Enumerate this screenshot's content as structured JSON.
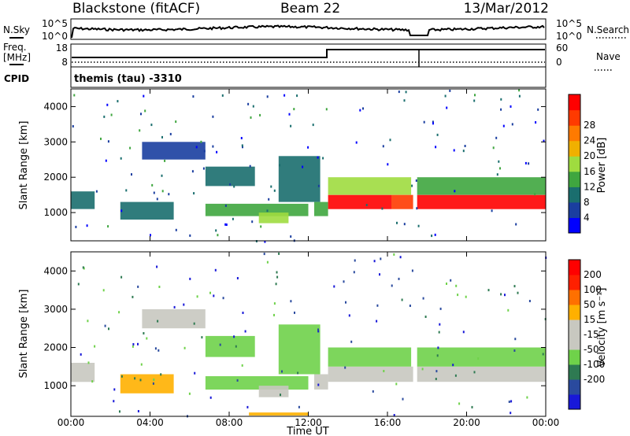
{
  "header": {
    "title": "Blackstone (fitACF)",
    "beam": "Beam 22",
    "date": "13/Mar/2012"
  },
  "noise_panel": {
    "left_label": "N.Sky",
    "left_ticks": [
      "10^5",
      "10^0"
    ],
    "right_label": "N.Search",
    "right_ticks": [
      "10^5",
      "10^0"
    ]
  },
  "freq_panel": {
    "left_label_1": "Freq.",
    "left_label_2": "[MHz]",
    "left_ticks": [
      "18",
      "8"
    ],
    "right_label": "Nave",
    "right_ticks": [
      "60",
      "0"
    ],
    "cpid_label": "CPID",
    "cpid_value": "themis (tau) -3310"
  },
  "colors": {
    "power_scale": [
      "#0000ff",
      "#1a3ea0",
      "#1a6e6e",
      "#3fa63f",
      "#9fdc3f",
      "#f0b000",
      "#ff7a00",
      "#ff3a00",
      "#ff0000"
    ],
    "velocity_scale": [
      "#1818d8",
      "#2a4a9e",
      "#2e7a52",
      "#6fd24a",
      "#c8c8c0",
      "#c8c8c0",
      "#ffb000",
      "#ff7000",
      "#ff2000",
      "#ff0000"
    ]
  },
  "chart_data": [
    {
      "type": "heatmap",
      "ylabel": "Slant Range [km]",
      "yticks": [
        "1000",
        "2000",
        "3000",
        "4000"
      ],
      "ylim": [
        200,
        4500
      ],
      "xlim": [
        0,
        24
      ],
      "colorbar_label": "Power [dB]",
      "colorbar_ticks": [
        "4",
        "8",
        "12",
        "16",
        "20",
        "24",
        "28"
      ],
      "regions": [
        {
          "t0": 0.0,
          "t1": 1.2,
          "r0": 1100,
          "r1": 1600,
          "level": 2
        },
        {
          "t0": 2.5,
          "t1": 5.2,
          "r0": 800,
          "r1": 1300,
          "level": 2
        },
        {
          "t0": 3.6,
          "t1": 6.8,
          "r0": 2500,
          "r1": 3000,
          "level": 1
        },
        {
          "t0": 6.8,
          "t1": 9.3,
          "r0": 1750,
          "r1": 2300,
          "level": 2
        },
        {
          "t0": 6.8,
          "t1": 12.0,
          "r0": 900,
          "r1": 1250,
          "level": 3
        },
        {
          "t0": 9.5,
          "t1": 11.0,
          "r0": 700,
          "r1": 1000,
          "level": 4
        },
        {
          "t0": 10.5,
          "t1": 12.6,
          "r0": 1300,
          "r1": 2600,
          "level": 2
        },
        {
          "t0": 12.3,
          "t1": 13.0,
          "r0": 900,
          "r1": 1300,
          "level": 3
        },
        {
          "t0": 13.0,
          "t1": 16.2,
          "r0": 1100,
          "r1": 1500,
          "level": 8
        },
        {
          "t0": 13.0,
          "t1": 17.2,
          "r0": 1500,
          "r1": 2000,
          "level": 4
        },
        {
          "t0": 16.2,
          "t1": 17.3,
          "r0": 1100,
          "r1": 1500,
          "level": 7
        },
        {
          "t0": 17.5,
          "t1": 24.0,
          "r0": 1100,
          "r1": 1500,
          "level": 8
        },
        {
          "t0": 17.5,
          "t1": 24.0,
          "r0": 1500,
          "r1": 2000,
          "level": 3
        }
      ]
    },
    {
      "type": "heatmap",
      "xlabel": "Time UT",
      "ylabel": "Slant Range [km]",
      "yticks": [
        "1000",
        "2000",
        "3000",
        "4000"
      ],
      "xticks": [
        "00:00",
        "04:00",
        "08:00",
        "12:00",
        "16:00",
        "20:00",
        "00:00"
      ],
      "ylim": [
        200,
        4500
      ],
      "xlim": [
        0,
        24
      ],
      "colorbar_label": "Velocity [m s⁻¹]",
      "colorbar_ticks": [
        "200",
        "100",
        "50",
        "15",
        "-15",
        "-50",
        "-100",
        "-200"
      ],
      "regions": [
        {
          "t0": 0.0,
          "t1": 1.2,
          "r0": 1100,
          "r1": 1600,
          "level": 4
        },
        {
          "t0": 2.5,
          "t1": 5.2,
          "r0": 800,
          "r1": 1300,
          "level": 6
        },
        {
          "t0": 3.6,
          "t1": 6.8,
          "r0": 2500,
          "r1": 3000,
          "level": 4
        },
        {
          "t0": 6.8,
          "t1": 9.3,
          "r0": 1750,
          "r1": 2300,
          "level": 3
        },
        {
          "t0": 6.8,
          "t1": 12.0,
          "r0": 900,
          "r1": 1250,
          "level": 3
        },
        {
          "t0": 9.5,
          "t1": 11.0,
          "r0": 700,
          "r1": 1000,
          "level": 4
        },
        {
          "t0": 10.5,
          "t1": 12.6,
          "r0": 1300,
          "r1": 2600,
          "level": 3
        },
        {
          "t0": 12.3,
          "t1": 13.0,
          "r0": 900,
          "r1": 1300,
          "level": 4
        },
        {
          "t0": 13.0,
          "t1": 17.3,
          "r0": 1100,
          "r1": 1500,
          "level": 4
        },
        {
          "t0": 13.0,
          "t1": 17.2,
          "r0": 1500,
          "r1": 2000,
          "level": 3
        },
        {
          "t0": 17.5,
          "t1": 24.0,
          "r0": 1100,
          "r1": 1500,
          "level": 4
        },
        {
          "t0": 17.5,
          "t1": 24.0,
          "r0": 1500,
          "r1": 2000,
          "level": 3
        },
        {
          "t0": 9.0,
          "t1": 12.0,
          "r0": 220,
          "r1": 300,
          "level": 6
        }
      ]
    }
  ]
}
